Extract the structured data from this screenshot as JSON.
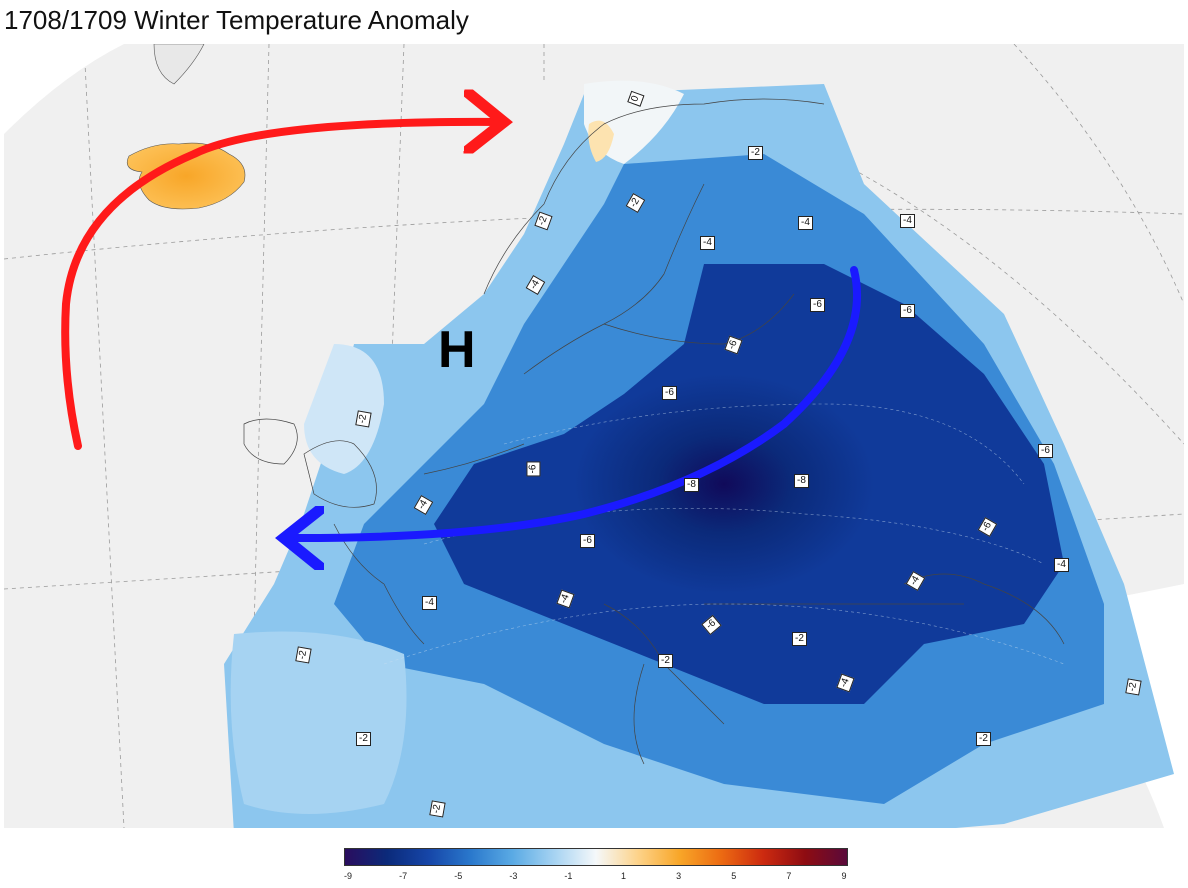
{
  "title": "1708/1709 Winter Temperature Anomaly",
  "high_pressure_label": "H",
  "colors": {
    "land": "#f0f0f0",
    "sea": "#ffffff",
    "warm_flow_arrow": "#ff1a1a",
    "cold_flow_arrow": "#1a1aff"
  },
  "contour_labels": [
    "0",
    "-2",
    "-2",
    "-2",
    "-4",
    "-4",
    "-4",
    "-4",
    "-6",
    "-6",
    "-6",
    "-6",
    "-6",
    "-2",
    "-6",
    "-4",
    "-8",
    "-8",
    "-6",
    "-4",
    "-4",
    "-6",
    "-6",
    "-4",
    "-4",
    "-2",
    "-2",
    "-4",
    "-2",
    "-2",
    "-2",
    "-2",
    "-2"
  ],
  "colorbar": {
    "tick_labels": [
      "-9",
      "-7",
      "-5",
      "-3",
      "-1",
      "1",
      "3",
      "5",
      "7",
      "9"
    ],
    "colors": [
      "#2a0d5e",
      "#0b2a7a",
      "#1646a8",
      "#2a78cc",
      "#5aaae4",
      "#a6d3f2",
      "#f5f8fa",
      "#fdd38a",
      "#f8a628",
      "#ec6a12",
      "#cc2a10",
      "#8e0c12",
      "#5a0a3a"
    ]
  }
}
